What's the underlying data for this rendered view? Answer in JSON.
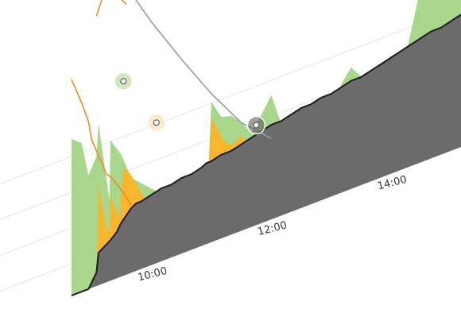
{
  "chart_data": {
    "type": "area",
    "title": "",
    "xlabel": "",
    "ylabel": "",
    "grid": true,
    "legend": "none",
    "x_ticks": [
      "10:00",
      "12:00",
      "14:00"
    ],
    "x_range": [
      "08:40",
      "15:10"
    ],
    "y_range": [
      0,
      100
    ],
    "colors": {
      "green": "#a8d68a",
      "amber": "#f8b62d",
      "gray": "#6b6b6b",
      "orange_line": "#f08a24",
      "gray_line": "#9a9a9a",
      "black_line": "#1c1c1c"
    },
    "series": [
      {
        "color": "#a8d68a",
        "kind": "area",
        "x": [
          "08:40",
          "08:50",
          "08:57",
          "09:05",
          "09:07",
          "09:18",
          "09:19",
          "09:30",
          "09:35",
          "09:40",
          "09:55",
          "10:10",
          "10:20",
          "10:30",
          "10:45",
          "10:55",
          "11:00",
          "11:10",
          "11:20",
          "11:30",
          "11:40",
          "11:50",
          "12:00",
          "12:10",
          "12:20",
          "12:30",
          "12:40",
          "12:50",
          "13:00",
          "13:10",
          "13:20",
          "13:30",
          "13:40",
          "13:50",
          "14:00",
          "14:10",
          "14:20",
          "14:30",
          "14:40",
          "14:50",
          "15:00",
          "15:10"
        ],
        "y": [
          58,
          55,
          42,
          48,
          60,
          30,
          52,
          45,
          40,
          35,
          30,
          25,
          15,
          10,
          8,
          9,
          52,
          45,
          44,
          40,
          35,
          40,
          46,
          34,
          30,
          27,
          33,
          31,
          27,
          40,
          45,
          40,
          37,
          35,
          30,
          35,
          50,
          65,
          70,
          62,
          56,
          58
        ]
      },
      {
        "color": "#f8b62d",
        "kind": "area",
        "x": [
          "08:40",
          "08:50",
          "08:57",
          "09:05",
          "09:07",
          "09:10",
          "09:15",
          "09:18",
          "09:19",
          "09:22",
          "09:28",
          "09:32",
          "09:40",
          "09:55",
          "10:10",
          "10:20",
          "10:30",
          "10:45",
          "10:55",
          "11:00",
          "11:05",
          "11:12",
          "11:20",
          "11:30",
          "11:40",
          "11:50",
          "12:00",
          "12:10",
          "12:20",
          "12:30",
          "12:40",
          "12:50",
          "13:00",
          "13:10",
          "13:15",
          "13:20",
          "13:25",
          "13:30",
          "13:35",
          "13:45",
          "13:50",
          "13:55",
          "14:00",
          "14:10",
          "14:20",
          "14:30",
          "14:40",
          "14:50",
          "15:00",
          "15:10"
        ],
        "y": [
          0,
          0,
          0,
          0,
          38,
          30,
          20,
          18,
          32,
          28,
          22,
          40,
          36,
          24,
          20,
          12,
          8,
          7,
          8,
          46,
          42,
          36,
          33,
          35,
          30,
          27,
          28,
          24,
          22,
          20,
          18,
          17,
          18,
          22,
          35,
          32,
          30,
          27,
          25,
          26,
          40,
          38,
          34,
          30,
          30,
          28,
          27,
          26,
          28,
          30
        ]
      },
      {
        "color": "#6b6b6b",
        "kind": "area",
        "x": [
          "08:40",
          "08:50",
          "08:57",
          "09:05",
          "09:07",
          "09:15",
          "09:19",
          "09:25",
          "09:30",
          "09:35",
          "09:40",
          "09:45",
          "09:50",
          "10:00",
          "10:10",
          "10:20",
          "10:30",
          "10:40",
          "10:50",
          "10:55",
          "11:00",
          "11:10",
          "11:20",
          "11:30",
          "11:40",
          "11:50",
          "12:00",
          "12:10",
          "12:20",
          "12:30",
          "12:40",
          "12:50",
          "13:00",
          "13:10",
          "13:20",
          "13:30",
          "13:40",
          "13:50",
          "14:00",
          "14:10",
          "14:20",
          "14:30",
          "14:40",
          "14:50",
          "15:00",
          "15:10"
        ],
        "y": [
          0,
          0,
          0,
          5,
          12,
          14,
          15,
          17,
          20,
          22,
          24,
          25,
          25,
          26,
          27,
          27,
          28,
          28,
          29,
          30,
          30,
          31,
          31,
          32,
          33,
          34,
          35,
          35,
          36,
          37,
          37,
          38,
          38,
          39,
          40,
          40,
          41,
          42,
          43,
          44,
          45,
          46,
          47,
          47,
          48,
          49
        ]
      },
      {
        "color": "#f08a24",
        "kind": "line",
        "x": [
          "08:40",
          "08:45",
          "08:50",
          "08:57",
          "09:00",
          "09:05",
          "09:10",
          "09:15",
          "09:20",
          "09:30",
          "09:40"
        ],
        "y": [
          80,
          75,
          70,
          62,
          55,
          50,
          45,
          40,
          38,
          32,
          25
        ]
      },
      {
        "color": "#f08a24",
        "kind": "line",
        "x": [
          "09:05",
          "09:15",
          "09:25",
          "09:35"
        ],
        "y": [
          100,
          110,
          105,
          100
        ]
      },
      {
        "color": "#9a9a9a",
        "kind": "line",
        "x": [
          "09:30",
          "10:00",
          "10:30",
          "11:00",
          "11:30",
          "12:00"
        ],
        "y": [
          110,
          90,
          72,
          55,
          40,
          30
        ]
      },
      {
        "color": "#1c1c1c",
        "kind": "line",
        "x": [
          "08:40",
          "08:50",
          "08:57",
          "09:05",
          "09:07",
          "09:15",
          "09:19",
          "09:25",
          "09:30",
          "09:35",
          "09:40",
          "09:45",
          "09:50",
          "10:00",
          "10:10",
          "10:20",
          "10:30",
          "10:40",
          "10:50",
          "10:55",
          "11:00",
          "11:10",
          "11:20",
          "11:30",
          "11:40",
          "11:50",
          "12:00",
          "12:10",
          "12:20",
          "12:30",
          "12:40",
          "12:50",
          "13:00",
          "13:10",
          "13:20",
          "13:30",
          "13:40",
          "13:50",
          "14:00",
          "14:10",
          "14:20",
          "14:30",
          "14:40",
          "14:50",
          "15:00",
          "15:10"
        ],
        "y": [
          0,
          0,
          0,
          5,
          12,
          14,
          15,
          17,
          20,
          22,
          24,
          25,
          25,
          26,
          27,
          27,
          28,
          28,
          29,
          30,
          30,
          31,
          31,
          32,
          33,
          34,
          35,
          35,
          36,
          37,
          37,
          38,
          38,
          39,
          40,
          40,
          41,
          42,
          43,
          44,
          45,
          46,
          47,
          47,
          48,
          49
        ]
      }
    ],
    "points": [
      {
        "x": "09:32",
        "y": 72,
        "color": "#a8d68a"
      },
      {
        "x": "10:05",
        "y": 52,
        "color": "#f8d8a0"
      },
      {
        "x": "11:45",
        "y": 37,
        "color": "#555555"
      }
    ]
  }
}
